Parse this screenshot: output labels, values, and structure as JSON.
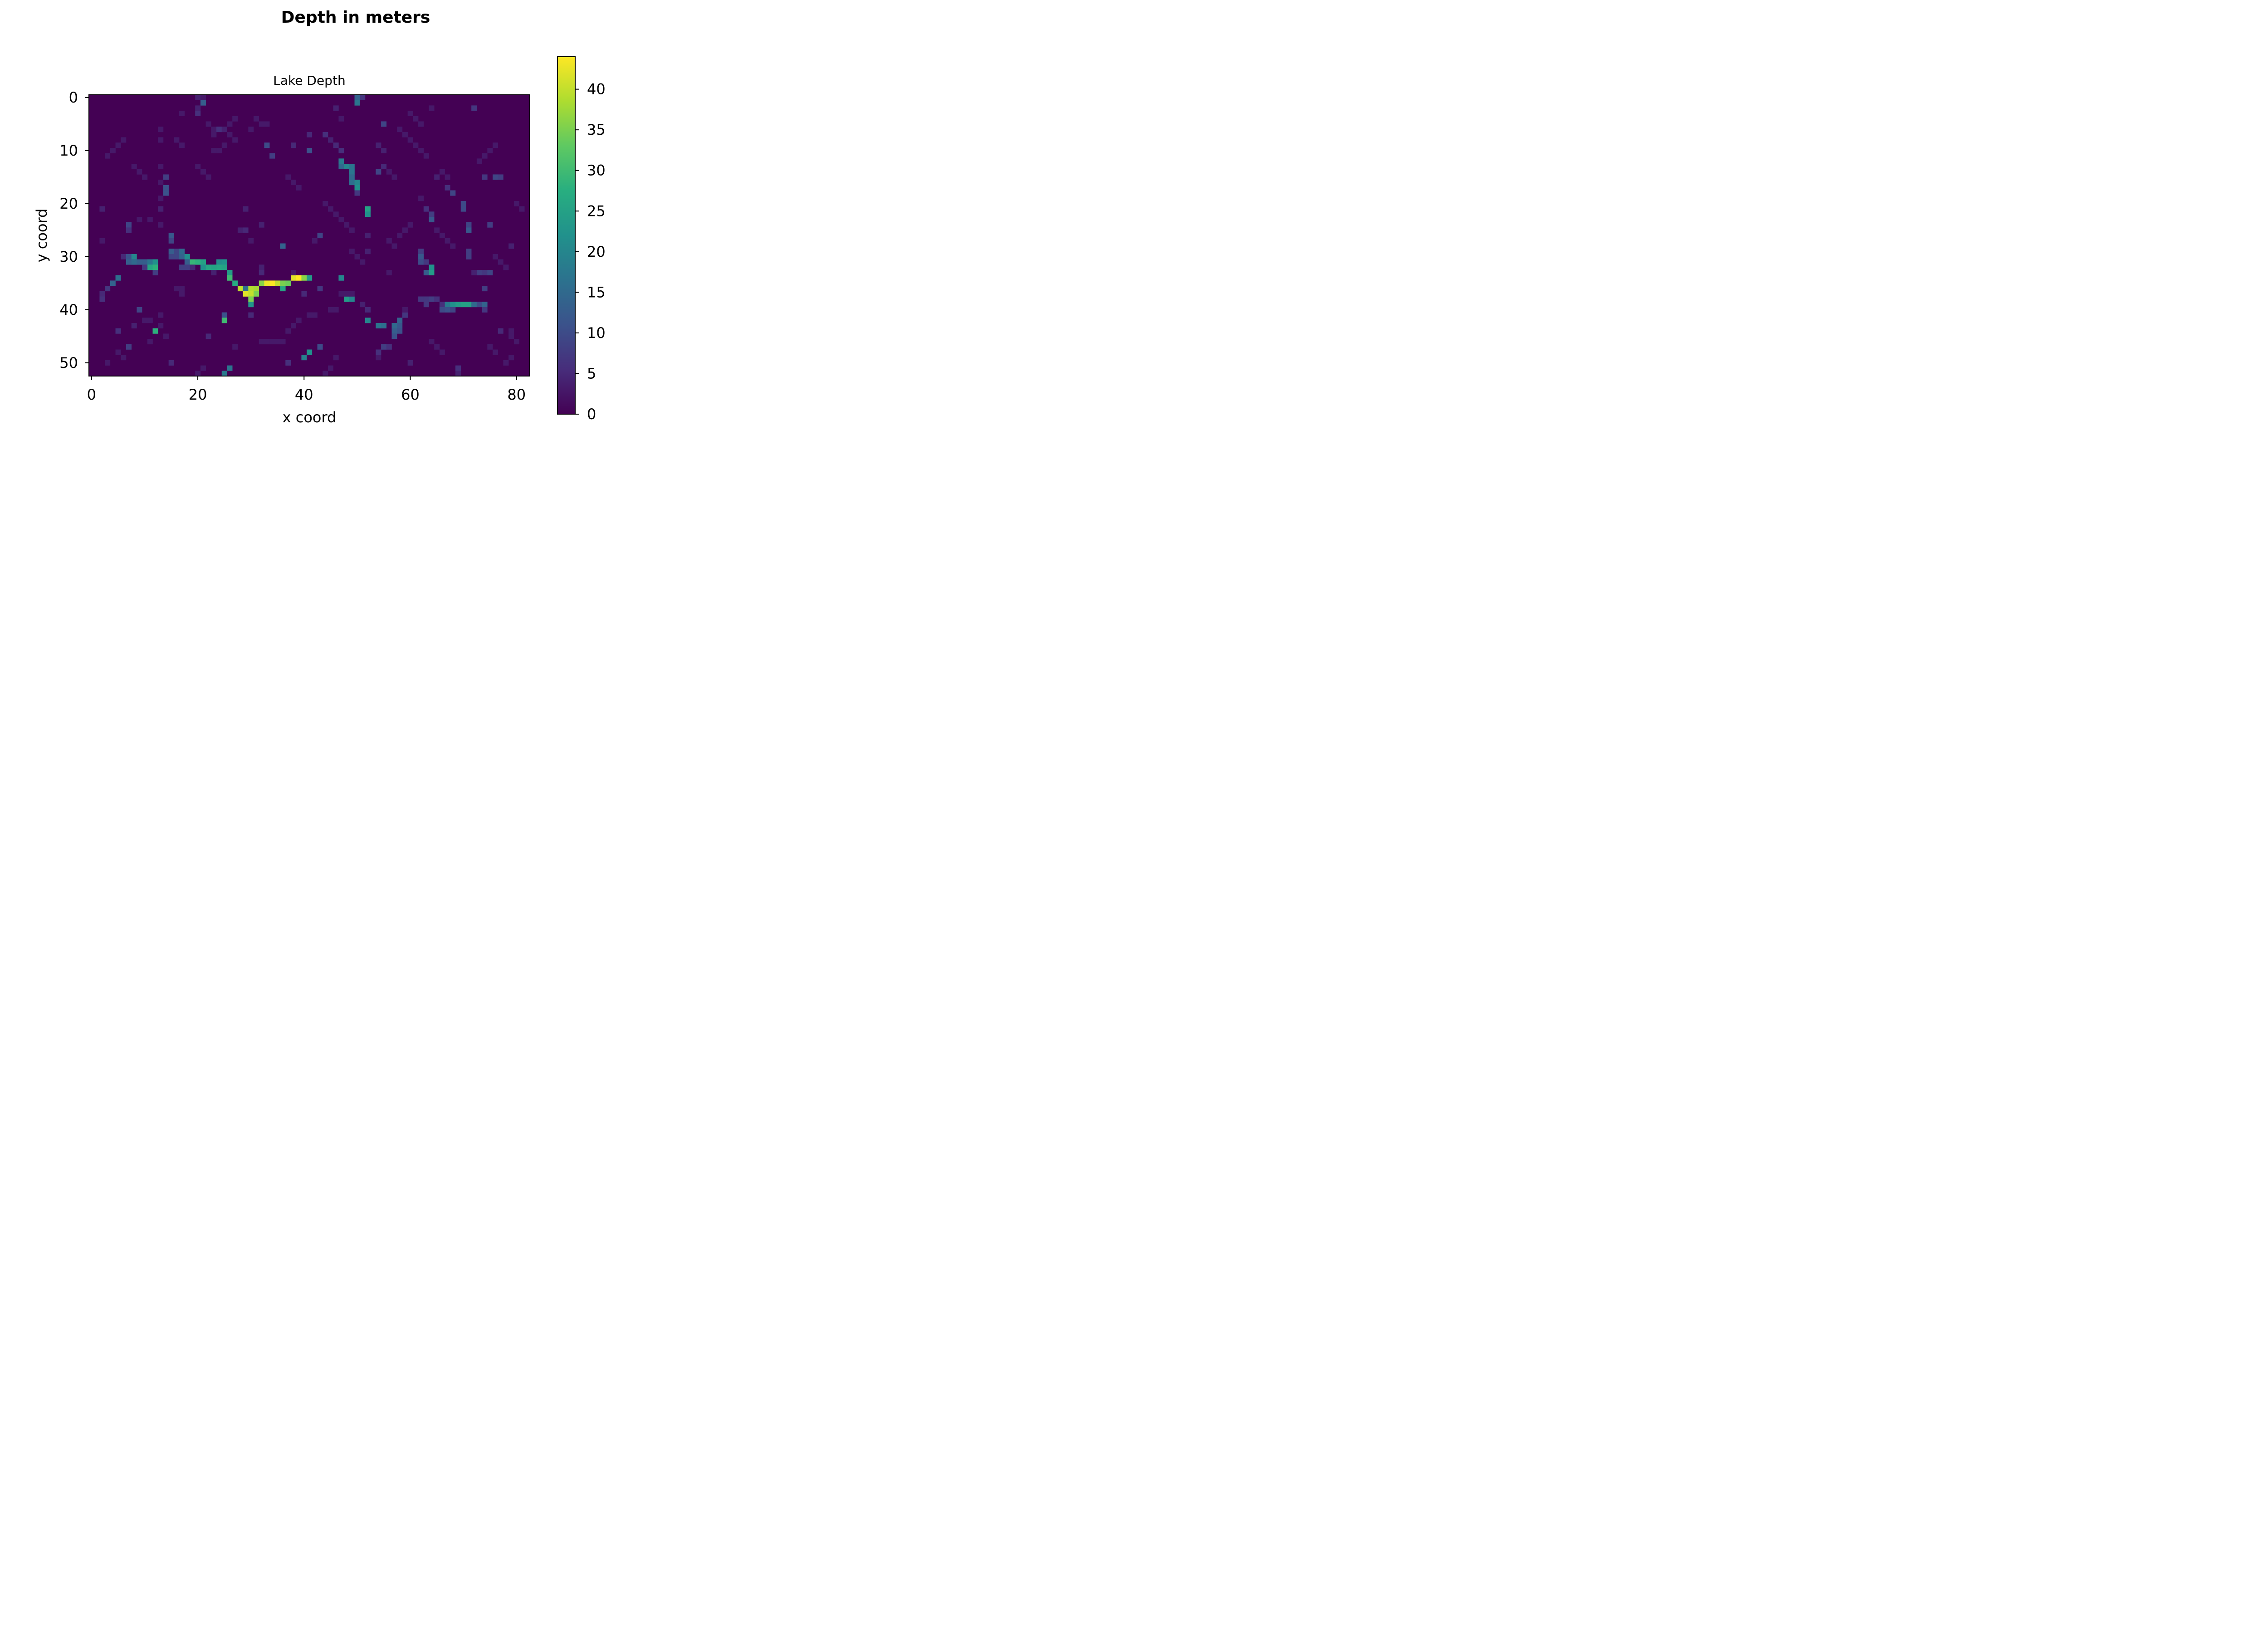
{
  "figure": {
    "suptitle": "Depth in meters"
  },
  "chart_data": {
    "type": "heatmap",
    "title": "Lake Depth",
    "xlabel": "x coord",
    "ylabel": "y coord",
    "xlim": [
      -0.5,
      82.5
    ],
    "ylim": [
      52.5,
      -0.5
    ],
    "x_ticks": [
      0,
      20,
      40,
      60,
      80
    ],
    "y_ticks": [
      0,
      10,
      20,
      30,
      40,
      50
    ],
    "grid": false,
    "colormap": "viridis",
    "colorbar": {
      "label": "",
      "range": [
        0,
        44
      ],
      "ticks": [
        0,
        5,
        10,
        15,
        20,
        25,
        30,
        35,
        40
      ]
    },
    "background_value": 0,
    "cells": [
      [
        21,
        0,
        3
      ],
      [
        21,
        1,
        13
      ],
      [
        20,
        0,
        4
      ],
      [
        20,
        2,
        4
      ],
      [
        20,
        3,
        6
      ],
      [
        17,
        3,
        3
      ],
      [
        50,
        0,
        14
      ],
      [
        50,
        1,
        17
      ],
      [
        51,
        0,
        7
      ],
      [
        46,
        2,
        4
      ],
      [
        47,
        4,
        3
      ],
      [
        55,
        5,
        9
      ],
      [
        54,
        9,
        4
      ],
      [
        55,
        10,
        4
      ],
      [
        54,
        14,
        9
      ],
      [
        55,
        13,
        5
      ],
      [
        41,
        7,
        5
      ],
      [
        44,
        7,
        6
      ],
      [
        45,
        8,
        4
      ],
      [
        46,
        9,
        5
      ],
      [
        47,
        10,
        6
      ],
      [
        41,
        10,
        11
      ],
      [
        33,
        9,
        10
      ],
      [
        34,
        11,
        8
      ],
      [
        38,
        9,
        5
      ],
      [
        47,
        12,
        18
      ],
      [
        47,
        13,
        15
      ],
      [
        48,
        13,
        20
      ],
      [
        49,
        13,
        17
      ],
      [
        49,
        14,
        17
      ],
      [
        49,
        15,
        15
      ],
      [
        49,
        16,
        16
      ],
      [
        50,
        16,
        20
      ],
      [
        50,
        17,
        22
      ],
      [
        50,
        18,
        7
      ],
      [
        52,
        21,
        25
      ],
      [
        52,
        22,
        22
      ],
      [
        52,
        26,
        4
      ],
      [
        52,
        29,
        4
      ],
      [
        14,
        15,
        8
      ],
      [
        14,
        17,
        11
      ],
      [
        14,
        18,
        11
      ],
      [
        13,
        21,
        4
      ],
      [
        2,
        21,
        4
      ],
      [
        29,
        21,
        4
      ],
      [
        32,
        24,
        4
      ],
      [
        28,
        25,
        4
      ],
      [
        29,
        25,
        5
      ],
      [
        30,
        27,
        3
      ],
      [
        43,
        26,
        9
      ],
      [
        42,
        27,
        3
      ],
      [
        7,
        24,
        9
      ],
      [
        7,
        25,
        6
      ],
      [
        15,
        26,
        12
      ],
      [
        15,
        27,
        9
      ],
      [
        15,
        29,
        13
      ],
      [
        15,
        30,
        9
      ],
      [
        16,
        29,
        9
      ],
      [
        16,
        30,
        9
      ],
      [
        17,
        29,
        15
      ],
      [
        17,
        30,
        14
      ],
      [
        6,
        30,
        5
      ],
      [
        7,
        30,
        11
      ],
      [
        8,
        30,
        20
      ],
      [
        7,
        31,
        13
      ],
      [
        8,
        31,
        15
      ],
      [
        9,
        31,
        13
      ],
      [
        10,
        31,
        13
      ],
      [
        11,
        31,
        17
      ],
      [
        12,
        31,
        22
      ],
      [
        11,
        32,
        26
      ],
      [
        12,
        32,
        28
      ],
      [
        10,
        32,
        7
      ],
      [
        12,
        33,
        8
      ],
      [
        18,
        30,
        22
      ],
      [
        18,
        31,
        13
      ],
      [
        19,
        31,
        29
      ],
      [
        20,
        31,
        28
      ],
      [
        21,
        31,
        25
      ],
      [
        21,
        32,
        22
      ],
      [
        22,
        32,
        26
      ],
      [
        23,
        32,
        25
      ],
      [
        24,
        31,
        21
      ],
      [
        25,
        31,
        22
      ],
      [
        24,
        32,
        26
      ],
      [
        25,
        32,
        25
      ],
      [
        26,
        33,
        24
      ],
      [
        26,
        34,
        30
      ],
      [
        27,
        35,
        27
      ],
      [
        17,
        32,
        8
      ],
      [
        18,
        32,
        8
      ],
      [
        19,
        32,
        5
      ],
      [
        23,
        33,
        4
      ],
      [
        28,
        36,
        40
      ],
      [
        29,
        36,
        16
      ],
      [
        29,
        37,
        42
      ],
      [
        30,
        36,
        39
      ],
      [
        30,
        37,
        40
      ],
      [
        30,
        38,
        35
      ],
      [
        30,
        39,
        23
      ],
      [
        31,
        36,
        38
      ],
      [
        31,
        37,
        35
      ],
      [
        32,
        35,
        36
      ],
      [
        33,
        35,
        43
      ],
      [
        34,
        35,
        44
      ],
      [
        35,
        35,
        40
      ],
      [
        36,
        35,
        35
      ],
      [
        36,
        36,
        26
      ],
      [
        37,
        35,
        34
      ],
      [
        38,
        34,
        42
      ],
      [
        39,
        34,
        44
      ],
      [
        40,
        34,
        36
      ],
      [
        41,
        34,
        24
      ],
      [
        32,
        33,
        5
      ],
      [
        32,
        32,
        4
      ],
      [
        5,
        34,
        16
      ],
      [
        4,
        35,
        14
      ],
      [
        3,
        36,
        7
      ],
      [
        2,
        37,
        5
      ],
      [
        2,
        38,
        6
      ],
      [
        9,
        40,
        9
      ],
      [
        47,
        34,
        20
      ],
      [
        48,
        38,
        24
      ],
      [
        49,
        38,
        20
      ],
      [
        51,
        39,
        4
      ],
      [
        52,
        40,
        5
      ],
      [
        52,
        42,
        20
      ],
      [
        54,
        43,
        17
      ],
      [
        55,
        43,
        16
      ],
      [
        57,
        43,
        15
      ],
      [
        57,
        44,
        13
      ],
      [
        58,
        42,
        14
      ],
      [
        58,
        43,
        12
      ],
      [
        57,
        45,
        11
      ],
      [
        58,
        44,
        11
      ],
      [
        59,
        41,
        7
      ],
      [
        62,
        29,
        8
      ],
      [
        62,
        30,
        12
      ],
      [
        62,
        31,
        10
      ],
      [
        63,
        31,
        7
      ],
      [
        64,
        32,
        22
      ],
      [
        64,
        33,
        24
      ],
      [
        63,
        33,
        13
      ],
      [
        62,
        38,
        7
      ],
      [
        63,
        38,
        7
      ],
      [
        64,
        38,
        8
      ],
      [
        65,
        38,
        6
      ],
      [
        63,
        39,
        7
      ],
      [
        66,
        39,
        6
      ],
      [
        66,
        40,
        10
      ],
      [
        67,
        39,
        18
      ],
      [
        67,
        40,
        11
      ],
      [
        68,
        39,
        22
      ],
      [
        68,
        40,
        9
      ],
      [
        69,
        39,
        24
      ],
      [
        70,
        39,
        25
      ],
      [
        71,
        39,
        25
      ],
      [
        72,
        39,
        15
      ],
      [
        73,
        39,
        10
      ],
      [
        74,
        39,
        14
      ],
      [
        74,
        40,
        7
      ],
      [
        64,
        22,
        8
      ],
      [
        64,
        23,
        12
      ],
      [
        63,
        21,
        6
      ],
      [
        62,
        19,
        3
      ],
      [
        67,
        17,
        6
      ],
      [
        68,
        18,
        9
      ],
      [
        70,
        20,
        10
      ],
      [
        70,
        21,
        10
      ],
      [
        71,
        24,
        9
      ],
      [
        71,
        25,
        12
      ],
      [
        71,
        29,
        8
      ],
      [
        71,
        30,
        8
      ],
      [
        74,
        15,
        7
      ],
      [
        76,
        15,
        9
      ],
      [
        77,
        15,
        8
      ],
      [
        72,
        2,
        7
      ],
      [
        65,
        15,
        4
      ],
      [
        64,
        2,
        3
      ],
      [
        73,
        33,
        8
      ],
      [
        74,
        33,
        7
      ],
      [
        75,
        33,
        9
      ],
      [
        72,
        33,
        4
      ],
      [
        74,
        36,
        8
      ],
      [
        75,
        24,
        8
      ],
      [
        79,
        28,
        4
      ],
      [
        25,
        41,
        11
      ],
      [
        25,
        42,
        30
      ],
      [
        30,
        41,
        5
      ],
      [
        26,
        51,
        17
      ],
      [
        25,
        52,
        18
      ],
      [
        40,
        49,
        19
      ],
      [
        41,
        48,
        22
      ],
      [
        43,
        47,
        10
      ],
      [
        46,
        49,
        3
      ],
      [
        37,
        50,
        6
      ],
      [
        36,
        28,
        14
      ],
      [
        38,
        33,
        3
      ],
      [
        43,
        36,
        7
      ],
      [
        12,
        44,
        28
      ],
      [
        5,
        44,
        6
      ],
      [
        7,
        47,
        8
      ],
      [
        8,
        43,
        4
      ],
      [
        15,
        50,
        5
      ],
      [
        22,
        45,
        5
      ],
      [
        27,
        47,
        3
      ],
      [
        55,
        47,
        8
      ],
      [
        56,
        47,
        6
      ],
      [
        54,
        48,
        6
      ],
      [
        54,
        49,
        3
      ],
      [
        60,
        50,
        4
      ],
      [
        69,
        51,
        6
      ],
      [
        69,
        52,
        4
      ],
      [
        79,
        44,
        3
      ],
      [
        79,
        45,
        3
      ],
      [
        77,
        44,
        5
      ],
      [
        40,
        37,
        5
      ],
      [
        47,
        37,
        3
      ],
      [
        48,
        37,
        3
      ],
      [
        49,
        37,
        3
      ],
      [
        56,
        33,
        3
      ],
      [
        59,
        40,
        3
      ],
      [
        13,
        13,
        3
      ],
      [
        13,
        16,
        3
      ],
      [
        13,
        19,
        3
      ],
      [
        13,
        24,
        3
      ],
      [
        11,
        23,
        3
      ],
      [
        9,
        23,
        3
      ],
      [
        2,
        27,
        3
      ],
      [
        13,
        8,
        3
      ],
      [
        13,
        6,
        3
      ],
      [
        17,
        36,
        3
      ],
      [
        16,
        36,
        3
      ],
      [
        17,
        37,
        3
      ],
      [
        13,
        41,
        3
      ],
      [
        13,
        43,
        3
      ],
      [
        11,
        42,
        3
      ],
      [
        10,
        42,
        3
      ],
      [
        14,
        45,
        3
      ],
      [
        11,
        46,
        3
      ],
      [
        32,
        46,
        3
      ],
      [
        33,
        46,
        3
      ],
      [
        35,
        46,
        3
      ],
      [
        36,
        46,
        3
      ],
      [
        34,
        46,
        3
      ],
      [
        37,
        44,
        3
      ],
      [
        38,
        43,
        3
      ],
      [
        39,
        42,
        3
      ],
      [
        41,
        41,
        3
      ],
      [
        42,
        41,
        3
      ],
      [
        45,
        40,
        3
      ],
      [
        46,
        40,
        3
      ],
      [
        44,
        20,
        3
      ],
      [
        45,
        21,
        3
      ],
      [
        46,
        22,
        3
      ],
      [
        47,
        23,
        3
      ],
      [
        48,
        24,
        3
      ],
      [
        49,
        25,
        3
      ],
      [
        37,
        15,
        3
      ],
      [
        38,
        16,
        3
      ],
      [
        39,
        17,
        3
      ],
      [
        32,
        5,
        3
      ],
      [
        33,
        5,
        3
      ],
      [
        31,
        4,
        3
      ],
      [
        30,
        6,
        3
      ],
      [
        26,
        7,
        3
      ],
      [
        27,
        8,
        3
      ],
      [
        25,
        9,
        3
      ],
      [
        24,
        10,
        3
      ],
      [
        23,
        10,
        3
      ],
      [
        60,
        8,
        3
      ],
      [
        61,
        9,
        3
      ],
      [
        62,
        10,
        3
      ],
      [
        63,
        11,
        3
      ],
      [
        22,
        5,
        3
      ],
      [
        23,
        6,
        3
      ],
      [
        24,
        6,
        6
      ],
      [
        23,
        7,
        3
      ],
      [
        25,
        6,
        4
      ],
      [
        16,
        8,
        3
      ],
      [
        17,
        9,
        3
      ],
      [
        58,
        6,
        3
      ],
      [
        59,
        7,
        3
      ],
      [
        56,
        14,
        3
      ],
      [
        57,
        15,
        3
      ],
      [
        66,
        14,
        3
      ],
      [
        67,
        15,
        3
      ],
      [
        20,
        13,
        3
      ],
      [
        21,
        14,
        3
      ],
      [
        22,
        15,
        3
      ],
      [
        65,
        25,
        3
      ],
      [
        66,
        26,
        3
      ],
      [
        67,
        27,
        3
      ],
      [
        68,
        28,
        3
      ],
      [
        76,
        30,
        3
      ],
      [
        77,
        31,
        3
      ],
      [
        78,
        32,
        3
      ],
      [
        26,
        5,
        3
      ],
      [
        27,
        4,
        3
      ],
      [
        60,
        3,
        3
      ],
      [
        61,
        4,
        3
      ],
      [
        62,
        5,
        3
      ],
      [
        5,
        48,
        3
      ],
      [
        6,
        49,
        3
      ],
      [
        3,
        50,
        3
      ],
      [
        20,
        52,
        3
      ],
      [
        21,
        51,
        3
      ],
      [
        44,
        52,
        3
      ],
      [
        45,
        51,
        3
      ],
      [
        64,
        46,
        3
      ],
      [
        65,
        47,
        3
      ],
      [
        66,
        48,
        3
      ],
      [
        75,
        47,
        3
      ],
      [
        76,
        48,
        3
      ],
      [
        78,
        50,
        3
      ],
      [
        79,
        49,
        3
      ],
      [
        80,
        46,
        3
      ],
      [
        50,
        30,
        3
      ],
      [
        51,
        31,
        3
      ],
      [
        49,
        29,
        3
      ],
      [
        56,
        27,
        3
      ],
      [
        57,
        28,
        3
      ],
      [
        58,
        26,
        3
      ],
      [
        59,
        25,
        3
      ],
      [
        60,
        24,
        3
      ],
      [
        73,
        12,
        3
      ],
      [
        74,
        11,
        3
      ],
      [
        75,
        10,
        3
      ],
      [
        76,
        9,
        3
      ],
      [
        8,
        13,
        3
      ],
      [
        9,
        14,
        3
      ],
      [
        10,
        15,
        3
      ],
      [
        3,
        11,
        3
      ],
      [
        4,
        10,
        3
      ],
      [
        5,
        9,
        3
      ],
      [
        6,
        8,
        3
      ],
      [
        80,
        20,
        3
      ],
      [
        81,
        21,
        3
      ]
    ]
  }
}
